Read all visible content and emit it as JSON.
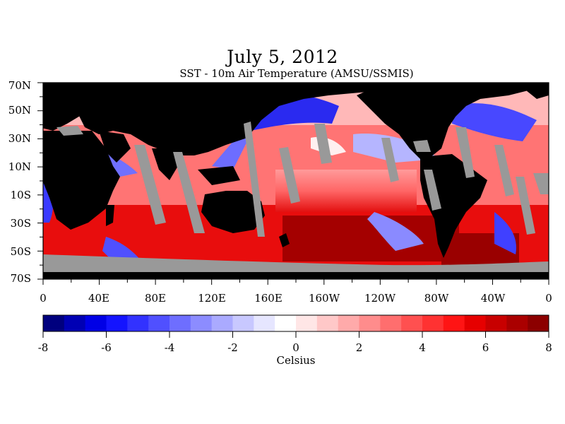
{
  "title": "July 5, 2012",
  "subtitle": "SST - 10m Air Temperature (AMSU/SSMIS)",
  "map": {
    "lat_labels": [
      "70N",
      "50N",
      "30N",
      "10N",
      "10S",
      "30S",
      "50S",
      "70S"
    ],
    "lon_labels": [
      "0",
      "40E",
      "80E",
      "120E",
      "160E",
      "160W",
      "120W",
      "80W",
      "40W",
      "0"
    ],
    "colors": {
      "land": "#000000",
      "missing": "#999999",
      "warm": "#e00000",
      "cold": "#0000d0"
    }
  },
  "colorbar": {
    "min": -8,
    "max": 8,
    "tick_labels": [
      "-8",
      "-6",
      "-4",
      "-2",
      "0",
      "2",
      "4",
      "6",
      "8"
    ],
    "label": "Celsius",
    "colors": [
      "#00007e",
      "#0000b4",
      "#0000e6",
      "#1414ff",
      "#3232ff",
      "#5050ff",
      "#6e6eff",
      "#8c8cff",
      "#aaaaff",
      "#c8c8ff",
      "#e6e6ff",
      "#ffffff",
      "#ffe6e6",
      "#ffc8c8",
      "#ffaaaa",
      "#ff8c8c",
      "#ff6e6e",
      "#ff5050",
      "#ff3232",
      "#ff1414",
      "#e60000",
      "#c80000",
      "#aa0000",
      "#8c0000"
    ]
  }
}
